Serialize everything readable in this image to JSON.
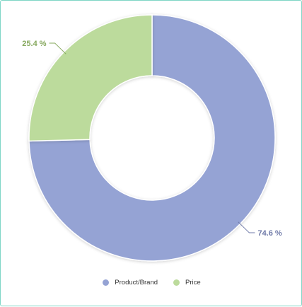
{
  "chart_data": {
    "type": "pie",
    "donut": true,
    "title": "",
    "slices": [
      {
        "name": "Product/Brand",
        "value": 74.6,
        "label": "74.6 %",
        "color": "#95a3d4",
        "label_color": "#6f7aa8"
      },
      {
        "name": "Price",
        "value": 25.4,
        "label": "25.4 %",
        "color": "#bcdb9c",
        "label_color": "#86a85e"
      }
    ],
    "legend": {
      "placement": "bottom-center"
    }
  }
}
